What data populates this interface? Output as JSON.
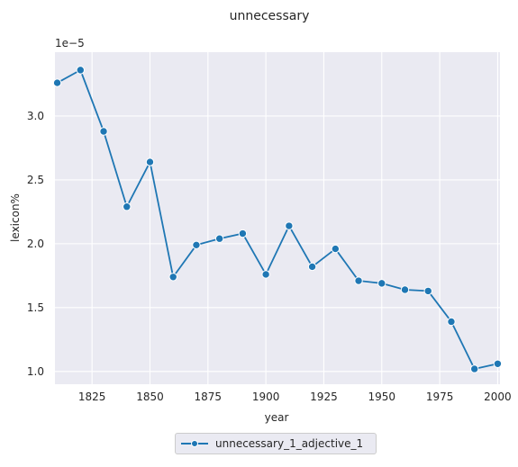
{
  "chart_data": {
    "type": "line",
    "title": "unnecessary",
    "xlabel": "year",
    "ylabel": "lexicon%",
    "y_offset_label": "1e−5",
    "y_scale_exponent": -5,
    "xlim": [
      1809,
      2001
    ],
    "ylim": [
      0.9,
      3.5
    ],
    "x_ticks": [
      1825,
      1850,
      1875,
      1900,
      1925,
      1950,
      1975,
      2000
    ],
    "y_ticks": [
      1.0,
      1.5,
      2.0,
      2.5,
      3.0
    ],
    "y_tick_labels": [
      "1.0",
      "1.5",
      "2.0",
      "2.5",
      "3.0"
    ],
    "grid": true,
    "legend_position": "bottom-center",
    "series": [
      {
        "name": "unnecessary_1_adjective_1",
        "color": "#1f77b4",
        "marker": "circle",
        "x": [
          1810,
          1820,
          1830,
          1840,
          1850,
          1860,
          1870,
          1880,
          1890,
          1900,
          1910,
          1920,
          1930,
          1940,
          1950,
          1960,
          1970,
          1980,
          1990,
          2000
        ],
        "y": [
          3.26,
          3.36,
          2.88,
          2.29,
          2.64,
          1.74,
          1.99,
          2.04,
          2.08,
          1.76,
          2.14,
          1.82,
          1.96,
          1.71,
          1.69,
          1.64,
          1.63,
          1.39,
          1.02,
          1.06
        ]
      }
    ]
  }
}
